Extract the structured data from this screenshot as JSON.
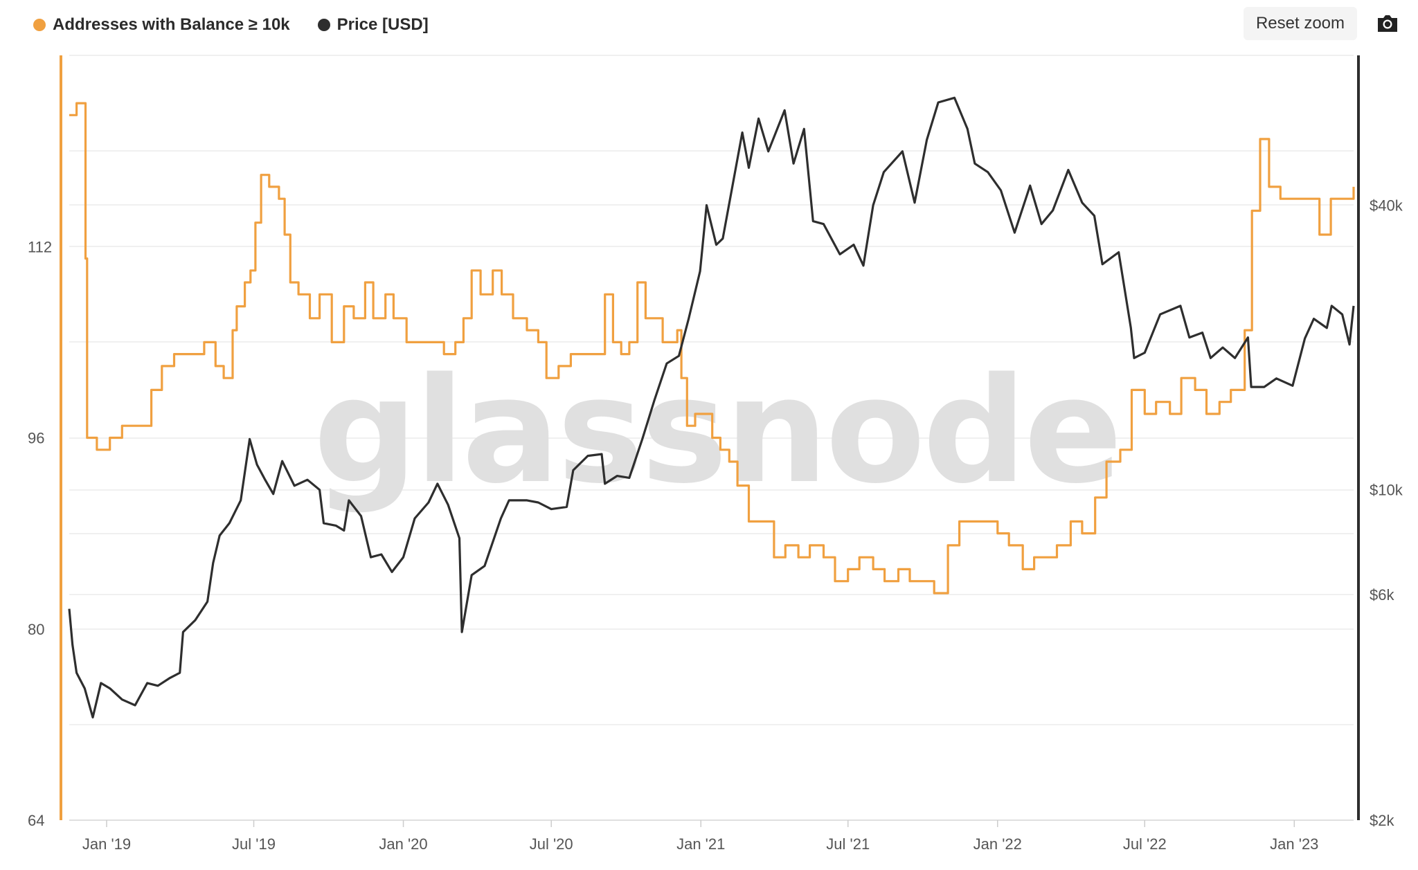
{
  "legend": {
    "series1_label": "Addresses with Balance ≥ 10k",
    "series2_label": "Price [USD]"
  },
  "toolbar": {
    "reset_zoom_label": "Reset zoom",
    "camera_icon": "camera-icon"
  },
  "watermark": "glassnode",
  "colors": {
    "addresses": "#F0A040",
    "price": "#2E2E2E",
    "grid": "#EBEBEB",
    "left_axis": "#F0A040",
    "right_axis": "#2E2E2E"
  },
  "chart_data": {
    "type": "line",
    "x_tick_labels": [
      "Jan '19",
      "Jul '19",
      "Jan '20",
      "Jul '20",
      "Jan '21",
      "Jul '21",
      "Jan '22",
      "Jul '22",
      "Jan '23"
    ],
    "x_tick_dates": [
      "2019-01-01",
      "2019-07-01",
      "2020-01-01",
      "2020-07-01",
      "2021-01-01",
      "2021-07-01",
      "2022-01-01",
      "2022-07-01",
      "2023-01-01"
    ],
    "x_range": [
      "2018-11-16",
      "2023-03-15"
    ],
    "left_axis": {
      "ticks": [
        64,
        80,
        96,
        112
      ],
      "range": [
        64,
        128
      ]
    },
    "right_axis": {
      "scale": "log",
      "ticks": [
        2000,
        6000,
        10000,
        40000
      ],
      "tick_labels": [
        "$2k",
        "$6k",
        "$10k",
        "$40k"
      ],
      "range": [
        2000,
        83000
      ]
    },
    "grid": true,
    "legend_position": "top-left",
    "series": [
      {
        "name": "Addresses with Balance ≥ 10k",
        "axis": "left",
        "points": [
          [
            "2018-11-16",
            123
          ],
          [
            "2018-11-25",
            124
          ],
          [
            "2018-12-02",
            124
          ],
          [
            "2018-12-06",
            111
          ],
          [
            "2018-12-08",
            96
          ],
          [
            "2018-12-20",
            95
          ],
          [
            "2019-01-05",
            96
          ],
          [
            "2019-01-20",
            97
          ],
          [
            "2019-02-10",
            97
          ],
          [
            "2019-02-25",
            100
          ],
          [
            "2019-03-10",
            102
          ],
          [
            "2019-03-25",
            103
          ],
          [
            "2019-04-15",
            103
          ],
          [
            "2019-05-01",
            104
          ],
          [
            "2019-05-15",
            102
          ],
          [
            "2019-05-25",
            101
          ],
          [
            "2019-06-05",
            105
          ],
          [
            "2019-06-10",
            107
          ],
          [
            "2019-06-20",
            109
          ],
          [
            "2019-06-27",
            110
          ],
          [
            "2019-07-03",
            114
          ],
          [
            "2019-07-10",
            118
          ],
          [
            "2019-07-20",
            117
          ],
          [
            "2019-08-01",
            116
          ],
          [
            "2019-08-08",
            113
          ],
          [
            "2019-08-15",
            109
          ],
          [
            "2019-08-25",
            108
          ],
          [
            "2019-09-08",
            106
          ],
          [
            "2019-09-20",
            108
          ],
          [
            "2019-10-05",
            104
          ],
          [
            "2019-10-20",
            107
          ],
          [
            "2019-11-01",
            106
          ],
          [
            "2019-11-15",
            109
          ],
          [
            "2019-11-25",
            106
          ],
          [
            "2019-12-10",
            108
          ],
          [
            "2019-12-20",
            106
          ],
          [
            "2020-01-05",
            104
          ],
          [
            "2020-01-20",
            104
          ],
          [
            "2020-02-05",
            104
          ],
          [
            "2020-02-20",
            103
          ],
          [
            "2020-03-05",
            104
          ],
          [
            "2020-03-15",
            106
          ],
          [
            "2020-03-25",
            110
          ],
          [
            "2020-04-05",
            108
          ],
          [
            "2020-04-20",
            110
          ],
          [
            "2020-05-01",
            108
          ],
          [
            "2020-05-15",
            106
          ],
          [
            "2020-06-01",
            105
          ],
          [
            "2020-06-15",
            104
          ],
          [
            "2020-06-25",
            101
          ],
          [
            "2020-07-10",
            102
          ],
          [
            "2020-07-25",
            103
          ],
          [
            "2020-08-10",
            103
          ],
          [
            "2020-08-25",
            103
          ],
          [
            "2020-09-05",
            108
          ],
          [
            "2020-09-15",
            104
          ],
          [
            "2020-09-25",
            103
          ],
          [
            "2020-10-05",
            104
          ],
          [
            "2020-10-15",
            109
          ],
          [
            "2020-10-25",
            106
          ],
          [
            "2020-11-05",
            106
          ],
          [
            "2020-11-15",
            104
          ],
          [
            "2020-11-25",
            104
          ],
          [
            "2020-12-03",
            105
          ],
          [
            "2020-12-08",
            101
          ],
          [
            "2020-12-15",
            97
          ],
          [
            "2020-12-25",
            98
          ],
          [
            "2021-01-05",
            98
          ],
          [
            "2021-01-15",
            96
          ],
          [
            "2021-01-25",
            95
          ],
          [
            "2021-02-05",
            94
          ],
          [
            "2021-02-15",
            92
          ],
          [
            "2021-03-01",
            89
          ],
          [
            "2021-03-15",
            89
          ],
          [
            "2021-04-01",
            86
          ],
          [
            "2021-04-15",
            87
          ],
          [
            "2021-05-01",
            86
          ],
          [
            "2021-05-15",
            87
          ],
          [
            "2021-06-01",
            86
          ],
          [
            "2021-06-15",
            84
          ],
          [
            "2021-07-01",
            85
          ],
          [
            "2021-07-15",
            86
          ],
          [
            "2021-08-01",
            85
          ],
          [
            "2021-08-15",
            84
          ],
          [
            "2021-09-01",
            85
          ],
          [
            "2021-09-15",
            84
          ],
          [
            "2021-10-01",
            84
          ],
          [
            "2021-10-15",
            83
          ],
          [
            "2021-11-01",
            87
          ],
          [
            "2021-11-15",
            89
          ],
          [
            "2021-12-01",
            89
          ],
          [
            "2021-12-15",
            89
          ],
          [
            "2022-01-01",
            88
          ],
          [
            "2022-01-15",
            87
          ],
          [
            "2022-02-01",
            85
          ],
          [
            "2022-02-15",
            86
          ],
          [
            "2022-03-01",
            86
          ],
          [
            "2022-03-15",
            87
          ],
          [
            "2022-04-01",
            89
          ],
          [
            "2022-04-15",
            88
          ],
          [
            "2022-05-01",
            91
          ],
          [
            "2022-05-15",
            94
          ],
          [
            "2022-06-01",
            95
          ],
          [
            "2022-06-15",
            100
          ],
          [
            "2022-07-01",
            98
          ],
          [
            "2022-07-15",
            99
          ],
          [
            "2022-08-01",
            98
          ],
          [
            "2022-08-15",
            101
          ],
          [
            "2022-09-01",
            100
          ],
          [
            "2022-09-15",
            98
          ],
          [
            "2022-10-01",
            99
          ],
          [
            "2022-10-15",
            100
          ],
          [
            "2022-11-01",
            105
          ],
          [
            "2022-11-10",
            115
          ],
          [
            "2022-11-20",
            121
          ],
          [
            "2022-12-01",
            117
          ],
          [
            "2022-12-15",
            116
          ],
          [
            "2023-01-01",
            116
          ],
          [
            "2023-01-15",
            116
          ],
          [
            "2023-02-01",
            113
          ],
          [
            "2023-02-15",
            116
          ],
          [
            "2023-03-01",
            116
          ],
          [
            "2023-03-15",
            117
          ]
        ]
      },
      {
        "name": "Price [USD]",
        "axis": "right",
        "points": [
          [
            "2018-11-16",
            5600
          ],
          [
            "2018-11-20",
            4700
          ],
          [
            "2018-11-25",
            4100
          ],
          [
            "2018-12-05",
            3800
          ],
          [
            "2018-12-15",
            3300
          ],
          [
            "2018-12-25",
            3900
          ],
          [
            "2019-01-05",
            3800
          ],
          [
            "2019-01-20",
            3600
          ],
          [
            "2019-02-05",
            3500
          ],
          [
            "2019-02-20",
            3900
          ],
          [
            "2019-03-05",
            3850
          ],
          [
            "2019-03-20",
            4000
          ],
          [
            "2019-04-01",
            4100
          ],
          [
            "2019-04-05",
            5000
          ],
          [
            "2019-04-20",
            5300
          ],
          [
            "2019-05-05",
            5800
          ],
          [
            "2019-05-12",
            7000
          ],
          [
            "2019-05-20",
            8000
          ],
          [
            "2019-06-01",
            8500
          ],
          [
            "2019-06-15",
            9500
          ],
          [
            "2019-06-26",
            12800
          ],
          [
            "2019-07-05",
            11300
          ],
          [
            "2019-07-15",
            10500
          ],
          [
            "2019-07-25",
            9800
          ],
          [
            "2019-08-05",
            11500
          ],
          [
            "2019-08-20",
            10200
          ],
          [
            "2019-09-05",
            10500
          ],
          [
            "2019-09-20",
            10000
          ],
          [
            "2019-09-25",
            8500
          ],
          [
            "2019-10-10",
            8400
          ],
          [
            "2019-10-20",
            8200
          ],
          [
            "2019-10-26",
            9500
          ],
          [
            "2019-11-10",
            8800
          ],
          [
            "2019-11-22",
            7200
          ],
          [
            "2019-12-05",
            7300
          ],
          [
            "2019-12-18",
            6700
          ],
          [
            "2020-01-01",
            7200
          ],
          [
            "2020-01-15",
            8700
          ],
          [
            "2020-02-01",
            9400
          ],
          [
            "2020-02-12",
            10300
          ],
          [
            "2020-02-25",
            9300
          ],
          [
            "2020-03-10",
            7900
          ],
          [
            "2020-03-13",
            5000
          ],
          [
            "2020-03-25",
            6600
          ],
          [
            "2020-04-10",
            6900
          ],
          [
            "2020-04-30",
            8700
          ],
          [
            "2020-05-10",
            9500
          ],
          [
            "2020-06-01",
            9500
          ],
          [
            "2020-06-15",
            9400
          ],
          [
            "2020-07-01",
            9100
          ],
          [
            "2020-07-20",
            9200
          ],
          [
            "2020-07-28",
            11000
          ],
          [
            "2020-08-15",
            11800
          ],
          [
            "2020-09-01",
            11900
          ],
          [
            "2020-09-05",
            10300
          ],
          [
            "2020-09-20",
            10700
          ],
          [
            "2020-10-05",
            10600
          ],
          [
            "2020-10-21",
            12800
          ],
          [
            "2020-11-05",
            15500
          ],
          [
            "2020-11-20",
            18500
          ],
          [
            "2020-12-05",
            19200
          ],
          [
            "2020-12-17",
            23000
          ],
          [
            "2020-12-31",
            29000
          ],
          [
            "2021-01-08",
            40000
          ],
          [
            "2021-01-20",
            33000
          ],
          [
            "2021-01-28",
            34000
          ],
          [
            "2021-02-10",
            45000
          ],
          [
            "2021-02-21",
            57000
          ],
          [
            "2021-03-01",
            48000
          ],
          [
            "2021-03-13",
            61000
          ],
          [
            "2021-03-25",
            52000
          ],
          [
            "2021-04-14",
            63500
          ],
          [
            "2021-04-25",
            49000
          ],
          [
            "2021-05-08",
            58000
          ],
          [
            "2021-05-19",
            37000
          ],
          [
            "2021-06-01",
            36500
          ],
          [
            "2021-06-21",
            31500
          ],
          [
            "2021-07-08",
            33000
          ],
          [
            "2021-07-20",
            29800
          ],
          [
            "2021-08-01",
            40000
          ],
          [
            "2021-08-14",
            47000
          ],
          [
            "2021-09-06",
            52000
          ],
          [
            "2021-09-21",
            40500
          ],
          [
            "2021-10-06",
            55000
          ],
          [
            "2021-10-20",
            66000
          ],
          [
            "2021-11-09",
            67500
          ],
          [
            "2021-11-25",
            58000
          ],
          [
            "2021-12-04",
            49000
          ],
          [
            "2021-12-20",
            47000
          ],
          [
            "2022-01-05",
            43000
          ],
          [
            "2022-01-22",
            35000
          ],
          [
            "2022-02-10",
            44000
          ],
          [
            "2022-02-24",
            36500
          ],
          [
            "2022-03-10",
            39000
          ],
          [
            "2022-03-29",
            47500
          ],
          [
            "2022-04-15",
            40500
          ],
          [
            "2022-04-30",
            38000
          ],
          [
            "2022-05-10",
            30000
          ],
          [
            "2022-05-30",
            31800
          ],
          [
            "2022-06-14",
            22000
          ],
          [
            "2022-06-18",
            19000
          ],
          [
            "2022-07-01",
            19500
          ],
          [
            "2022-07-20",
            23500
          ],
          [
            "2022-08-14",
            24500
          ],
          [
            "2022-08-25",
            21000
          ],
          [
            "2022-09-10",
            21500
          ],
          [
            "2022-09-20",
            19000
          ],
          [
            "2022-10-05",
            20000
          ],
          [
            "2022-10-20",
            19000
          ],
          [
            "2022-11-05",
            21000
          ],
          [
            "2022-11-09",
            16500
          ],
          [
            "2022-11-25",
            16500
          ],
          [
            "2022-12-10",
            17200
          ],
          [
            "2022-12-30",
            16600
          ],
          [
            "2023-01-14",
            20900
          ],
          [
            "2023-01-25",
            23000
          ],
          [
            "2023-02-10",
            22000
          ],
          [
            "2023-02-16",
            24500
          ],
          [
            "2023-03-01",
            23500
          ],
          [
            "2023-03-10",
            20300
          ],
          [
            "2023-03-15",
            24500
          ]
        ]
      }
    ]
  }
}
